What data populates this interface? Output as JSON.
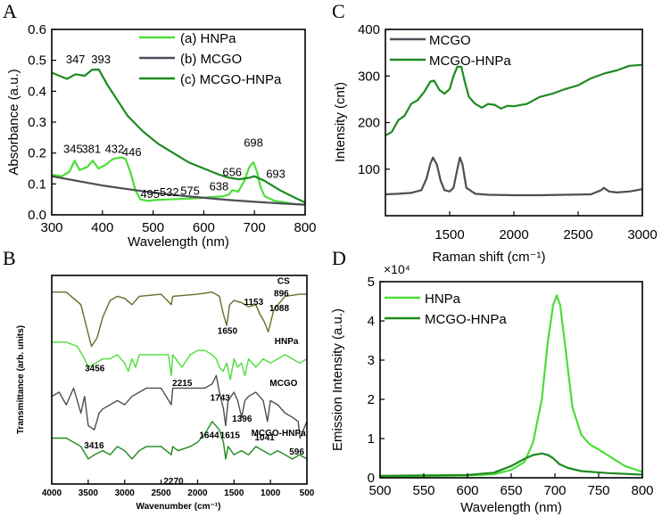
{
  "figure": {
    "panels": [
      "A",
      "B",
      "C",
      "D"
    ]
  },
  "colors": {
    "light_green": "#4ddd3a",
    "gray": "#4a4f57",
    "dark_green": "#1e8a1e",
    "olive": "#6b6a2a"
  },
  "chart_data": [
    {
      "id": "A",
      "type": "line",
      "xlabel": "Wavelength (nm)",
      "ylabel": "Absorbance (a.u.)",
      "xlim": [
        300,
        800
      ],
      "ylim": [
        0.0,
        0.6
      ],
      "xticks": [
        300,
        400,
        500,
        600,
        700,
        800
      ],
      "yticks": [
        0.0,
        0.1,
        0.2,
        0.3,
        0.4,
        0.5,
        0.6
      ],
      "legend_position": "top-right",
      "series": [
        {
          "name": "(a) HNPa",
          "color": "#4ddd3a",
          "x": [
            300,
            320,
            335,
            345,
            355,
            370,
            381,
            392,
            405,
            420,
            432,
            440,
            446,
            455,
            465,
            475,
            490,
            505,
            532,
            560,
            575,
            600,
            620,
            638,
            650,
            656,
            668,
            680,
            690,
            698,
            705,
            712,
            720,
            740,
            760,
            780,
            800
          ],
          "y": [
            0.13,
            0.125,
            0.14,
            0.175,
            0.145,
            0.155,
            0.175,
            0.15,
            0.16,
            0.18,
            0.185,
            0.185,
            0.18,
            0.14,
            0.08,
            0.05,
            0.045,
            0.048,
            0.05,
            0.052,
            0.053,
            0.055,
            0.058,
            0.06,
            0.066,
            0.08,
            0.075,
            0.11,
            0.155,
            0.17,
            0.14,
            0.09,
            0.06,
            0.045,
            0.04,
            0.035,
            0.032
          ]
        },
        {
          "name": "(b) MCGO",
          "color": "#4a4f57",
          "x": [
            300,
            350,
            400,
            450,
            500,
            550,
            600,
            650,
            700,
            750,
            800
          ],
          "y": [
            0.125,
            0.11,
            0.095,
            0.083,
            0.072,
            0.063,
            0.055,
            0.048,
            0.042,
            0.037,
            0.033
          ]
        },
        {
          "name": "(c) MCGO-HNPa",
          "color": "#1e8a1e",
          "x": [
            300,
            315,
            330,
            347,
            365,
            380,
            393,
            410,
            430,
            450,
            480,
            510,
            540,
            570,
            600,
            630,
            650,
            670,
            690,
            700,
            720,
            750,
            780,
            800
          ],
          "y": [
            0.46,
            0.45,
            0.44,
            0.455,
            0.45,
            0.47,
            0.47,
            0.42,
            0.37,
            0.32,
            0.27,
            0.23,
            0.2,
            0.17,
            0.15,
            0.13,
            0.12,
            0.115,
            0.12,
            0.125,
            0.11,
            0.08,
            0.055,
            0.04
          ]
        }
      ],
      "annotations": [
        {
          "text": "347",
          "x": 347,
          "y": 0.49
        },
        {
          "text": "393",
          "x": 397,
          "y": 0.49
        },
        {
          "text": "345",
          "x": 342,
          "y": 0.2
        },
        {
          "text": "381",
          "x": 378,
          "y": 0.2
        },
        {
          "text": "432",
          "x": 424,
          "y": 0.2
        },
        {
          "text": "446",
          "x": 458,
          "y": 0.19
        },
        {
          "text": "495",
          "x": 494,
          "y": 0.055
        },
        {
          "text": "532",
          "x": 532,
          "y": 0.06
        },
        {
          "text": "575",
          "x": 573,
          "y": 0.065
        },
        {
          "text": "638",
          "x": 630,
          "y": 0.08
        },
        {
          "text": "656",
          "x": 656,
          "y": 0.125
        },
        {
          "text": "698",
          "x": 698,
          "y": 0.22
        },
        {
          "text": "693",
          "x": 742,
          "y": 0.12
        }
      ]
    },
    {
      "id": "B",
      "type": "line",
      "xlabel": "Wavenumber (cm⁻¹)",
      "ylabel": "Transmittance (arb. units)",
      "xlim": [
        4000,
        500
      ],
      "ylim": [
        0,
        100
      ],
      "xticks": [
        4000,
        3500,
        3000,
        2500,
        2000,
        1500,
        1000,
        500
      ],
      "series": [
        {
          "name": "CS",
          "color": "#6b6a2a",
          "x": [
            4000,
            3800,
            3600,
            3500,
            3456,
            3380,
            3300,
            3200,
            3100,
            3000,
            2900,
            2800,
            2500,
            2360,
            2340,
            2000,
            1800,
            1700,
            1650,
            1600,
            1560,
            1500,
            1400,
            1300,
            1200,
            1153,
            1088,
            1030,
            950,
            896,
            800,
            600,
            500
          ],
          "y": [
            92,
            92,
            86,
            72,
            66,
            70,
            80,
            88,
            90,
            89,
            86,
            90,
            91,
            86,
            90,
            91,
            92,
            90,
            82,
            76,
            86,
            88,
            87,
            85,
            86,
            82,
            78,
            73,
            84,
            86,
            90,
            91,
            91
          ]
        },
        {
          "name": "HNPa",
          "color": "#4ddd3a",
          "x": [
            4000,
            3800,
            3650,
            3550,
            3500,
            3400,
            3300,
            3200,
            3100,
            3000,
            2950,
            2900,
            2850,
            2800,
            2600,
            2400,
            2360,
            2340,
            2215,
            2100,
            2000,
            1900,
            1800,
            1743,
            1700,
            1650,
            1600,
            1550,
            1500,
            1450,
            1400,
            1350,
            1300,
            1200,
            1100,
            1000,
            900,
            800,
            700,
            600,
            500
          ],
          "y": [
            68,
            68,
            66,
            60,
            56,
            58,
            60,
            60,
            62,
            58,
            54,
            60,
            56,
            62,
            62,
            62,
            52,
            62,
            56,
            62,
            64,
            64,
            62,
            60,
            56,
            54,
            58,
            50,
            60,
            56,
            58,
            52,
            60,
            56,
            60,
            58,
            60,
            62,
            60,
            58,
            60
          ]
        },
        {
          "name": "MCGO",
          "color": "#4a4f57",
          "x": [
            4000,
            3900,
            3800,
            3700,
            3600,
            3550,
            3500,
            3416,
            3350,
            3300,
            3200,
            3100,
            3000,
            2900,
            2800,
            2700,
            2500,
            2360,
            2340,
            2100,
            1900,
            1800,
            1743,
            1700,
            1644,
            1615,
            1580,
            1500,
            1450,
            1396,
            1350,
            1300,
            1200,
            1100,
            1041,
            1000,
            900,
            800,
            700,
            620,
            596,
            500
          ],
          "y": [
            42,
            44,
            38,
            46,
            34,
            42,
            28,
            26,
            34,
            36,
            38,
            40,
            38,
            42,
            44,
            46,
            46,
            38,
            46,
            46,
            46,
            48,
            52,
            44,
            36,
            28,
            40,
            44,
            40,
            32,
            40,
            42,
            44,
            40,
            30,
            40,
            38,
            34,
            32,
            30,
            22,
            30
          ]
        },
        {
          "name": "MCGO-HNPa",
          "color": "#1e8a1e",
          "x": [
            4000,
            3800,
            3700,
            3600,
            3500,
            3416,
            3300,
            3200,
            3100,
            3000,
            2900,
            2800,
            2700,
            2500,
            2360,
            2340,
            2270,
            2100,
            2000,
            1900,
            1800,
            1700,
            1644,
            1615,
            1580,
            1500,
            1400,
            1300,
            1200,
            1100,
            1000,
            900,
            800,
            700,
            600,
            500
          ],
          "y": [
            22,
            22,
            20,
            18,
            12,
            14,
            16,
            14,
            18,
            16,
            12,
            16,
            18,
            18,
            14,
            18,
            16,
            18,
            20,
            24,
            30,
            26,
            20,
            12,
            18,
            14,
            16,
            14,
            18,
            16,
            14,
            16,
            14,
            12,
            14,
            12
          ]
        }
      ],
      "annotations": [
        {
          "text": "CS",
          "x": 820,
          "y": 96
        },
        {
          "text": "1153",
          "x": 1230,
          "y": 86
        },
        {
          "text": "896",
          "x": 850,
          "y": 90
        },
        {
          "text": "1088",
          "x": 880,
          "y": 83
        },
        {
          "text": "1650",
          "x": 1590,
          "y": 72
        },
        {
          "text": "3456",
          "x": 3410,
          "y": 54
        },
        {
          "text": "HNPa",
          "x": 780,
          "y": 67
        },
        {
          "text": "2215",
          "x": 2210,
          "y": 47
        },
        {
          "text": "MCGO",
          "x": 820,
          "y": 47
        },
        {
          "text": "1743",
          "x": 1690,
          "y": 40
        },
        {
          "text": "1396",
          "x": 1390,
          "y": 30
        },
        {
          "text": "1644",
          "x": 1840,
          "y": 22
        },
        {
          "text": "1615",
          "x": 1555,
          "y": 22
        },
        {
          "text": "1041",
          "x": 1080,
          "y": 21
        },
        {
          "text": "596",
          "x": 640,
          "y": 14
        },
        {
          "text": "3416",
          "x": 3420,
          "y": 17
        },
        {
          "text": "MCGO-HNPa",
          "x": 890,
          "y": 23
        },
        {
          "text": "2270",
          "x": 2330,
          "y": 0
        }
      ]
    },
    {
      "id": "C",
      "type": "line",
      "xlabel": "Raman shift (cm⁻¹)",
      "ylabel": "Intensity (cnt)",
      "xlim": [
        1000,
        3000
      ],
      "ylim": [
        0,
        400
      ],
      "xticks": [
        1500,
        2000,
        2500,
        3000
      ],
      "yticks": [
        100,
        200,
        300,
        400
      ],
      "legend_position": "top-left",
      "series": [
        {
          "name": "MCGO",
          "color": "#4a4f57",
          "x": [
            1000,
            1100,
            1200,
            1280,
            1320,
            1350,
            1370,
            1400,
            1430,
            1460,
            1500,
            1530,
            1560,
            1580,
            1600,
            1630,
            1700,
            1800,
            2000,
            2200,
            2400,
            2600,
            2680,
            2700,
            2740,
            2800,
            2900,
            3000
          ],
          "y": [
            46,
            47,
            49,
            55,
            80,
            112,
            125,
            110,
            75,
            55,
            52,
            60,
            100,
            125,
            110,
            60,
            47,
            45,
            44,
            44,
            45,
            46,
            55,
            60,
            52,
            50,
            52,
            57
          ]
        },
        {
          "name": "MCGO-HNPa",
          "color": "#1e8a1e",
          "x": [
            1000,
            1050,
            1100,
            1150,
            1200,
            1250,
            1300,
            1350,
            1380,
            1420,
            1460,
            1500,
            1530,
            1560,
            1590,
            1620,
            1650,
            1700,
            1750,
            1800,
            1850,
            1900,
            1950,
            2000,
            2100,
            2200,
            2300,
            2400,
            2500,
            2600,
            2700,
            2800,
            2900,
            3000
          ],
          "y": [
            172,
            180,
            205,
            215,
            240,
            248,
            265,
            288,
            290,
            270,
            262,
            272,
            300,
            320,
            320,
            285,
            255,
            240,
            232,
            240,
            238,
            230,
            236,
            235,
            240,
            255,
            262,
            272,
            280,
            295,
            305,
            312,
            322,
            324
          ]
        }
      ]
    },
    {
      "id": "D",
      "type": "line",
      "xlabel": "Wavelength (nm)",
      "ylabel": "Emission Intensity (a.u.)",
      "xlim": [
        500,
        800
      ],
      "ylim": [
        0,
        50000
      ],
      "xticks": [
        500,
        550,
        600,
        650,
        700,
        750,
        800
      ],
      "yticks": [
        0,
        1,
        2,
        3,
        4,
        5
      ],
      "y_multiplier": "×10⁴",
      "legend_position": "top-left",
      "series": [
        {
          "name": "HNPa",
          "color": "#4ddd3a",
          "x": [
            500,
            550,
            600,
            630,
            650,
            665,
            675,
            685,
            692,
            698,
            702,
            706,
            712,
            720,
            730,
            740,
            750,
            760,
            780,
            800
          ],
          "y": [
            300,
            400,
            600,
            900,
            2000,
            4000,
            9000,
            20000,
            35000,
            44000,
            46500,
            44000,
            33000,
            18000,
            11000,
            8500,
            7200,
            5800,
            3000,
            1500
          ]
        },
        {
          "name": "MCGO-HNPa",
          "color": "#1e8a1e",
          "x": [
            500,
            550,
            600,
            630,
            650,
            665,
            675,
            685,
            692,
            698,
            705,
            715,
            730,
            760,
            800
          ],
          "y": [
            500,
            600,
            700,
            1300,
            3000,
            4800,
            5800,
            6200,
            5800,
            5000,
            3500,
            2500,
            1700,
            1200,
            800
          ]
        }
      ]
    }
  ]
}
